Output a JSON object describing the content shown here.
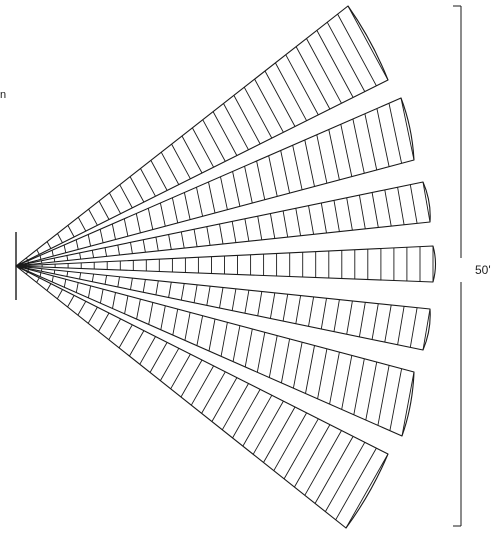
{
  "diagram": {
    "fragment_text": "n",
    "dimension_label": "50'",
    "zone_count": 7,
    "stroke_color": "#1a1a1a",
    "background_color": "#ffffff"
  }
}
